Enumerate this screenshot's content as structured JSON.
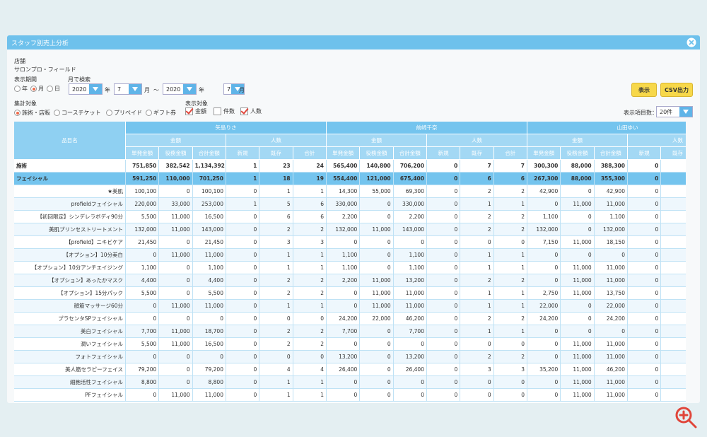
{
  "window": {
    "title": "スタッフ別売上分析"
  },
  "form": {
    "store_label": "店舗",
    "store_name": "サロンプロ・フィールド",
    "period_label": "表示期間",
    "period_options": [
      "年",
      "月",
      "日"
    ],
    "month_search_label": "月で検索",
    "from_year": "2020",
    "year_unit": "年",
    "from_month": "7",
    "month_unit": "月",
    "range_sep": "～",
    "to_year": "2020",
    "to_month": "7",
    "target_label": "集計対象",
    "target_options": [
      "施術・店販",
      "コースチケット",
      "プリペイド",
      "ギフト券"
    ],
    "display_label": "表示対象",
    "display_options": [
      "金額",
      "件数",
      "人数"
    ],
    "count_label": "表示項目数：",
    "count_value": "20件",
    "show_button": "表示",
    "csv_button": "CSV出力"
  },
  "table": {
    "header_item": "品目名",
    "staff": [
      "矢島りさ",
      "前崎千奈",
      "山田ゆい"
    ],
    "groups": [
      "金額",
      "人数"
    ],
    "columns": [
      "単発金額",
      "役務金額",
      "合計金額",
      "新規",
      "既存",
      "合計"
    ],
    "rows": [
      {
        "label": "施術",
        "values": [
          "751,850",
          "382,542",
          "1,134,392",
          "1",
          "23",
          "24",
          "565,400",
          "140,800",
          "706,200",
          "0",
          "7",
          "7",
          "300,300",
          "88,000",
          "388,300",
          "0"
        ]
      },
      {
        "label": "フェイシャル",
        "values": [
          "591,250",
          "110,000",
          "701,250",
          "1",
          "18",
          "19",
          "554,400",
          "121,000",
          "675,400",
          "0",
          "6",
          "6",
          "267,300",
          "88,000",
          "355,300",
          "0"
        ]
      },
      {
        "label": "★美肌",
        "values": [
          "100,100",
          "0",
          "100,100",
          "0",
          "1",
          "1",
          "14,300",
          "55,000",
          "69,300",
          "0",
          "2",
          "2",
          "42,900",
          "0",
          "42,900",
          "0"
        ]
      },
      {
        "label": "profieldフェイシャル",
        "values": [
          "220,000",
          "33,000",
          "253,000",
          "1",
          "5",
          "6",
          "330,000",
          "0",
          "330,000",
          "0",
          "1",
          "1",
          "0",
          "11,000",
          "11,000",
          "0"
        ]
      },
      {
        "label": "【初回限定】シンデレラボディ90分",
        "values": [
          "5,500",
          "11,000",
          "16,500",
          "0",
          "6",
          "6",
          "2,200",
          "0",
          "2,200",
          "0",
          "2",
          "2",
          "1,100",
          "0",
          "1,100",
          "0"
        ]
      },
      {
        "label": "美肌プリンセストリートメント",
        "values": [
          "132,000",
          "11,000",
          "143,000",
          "0",
          "2",
          "2",
          "132,000",
          "11,000",
          "143,000",
          "0",
          "2",
          "2",
          "132,000",
          "0",
          "132,000",
          "0"
        ]
      },
      {
        "label": "【profield】ニキビケア",
        "values": [
          "21,450",
          "0",
          "21,450",
          "0",
          "3",
          "3",
          "0",
          "0",
          "0",
          "0",
          "0",
          "0",
          "7,150",
          "11,000",
          "18,150",
          "0"
        ]
      },
      {
        "label": "【オプション】10分美白",
        "values": [
          "0",
          "11,000",
          "11,000",
          "0",
          "1",
          "1",
          "1,100",
          "0",
          "1,100",
          "0",
          "1",
          "1",
          "0",
          "0",
          "0",
          "0"
        ]
      },
      {
        "label": "【オプション】10分アンチエイジング",
        "values": [
          "1,100",
          "0",
          "1,100",
          "0",
          "1",
          "1",
          "1,100",
          "0",
          "1,100",
          "0",
          "1",
          "1",
          "0",
          "11,000",
          "11,000",
          "0"
        ]
      },
      {
        "label": "【オプション】あったかマスク",
        "values": [
          "4,400",
          "0",
          "4,400",
          "0",
          "2",
          "2",
          "2,200",
          "11,000",
          "13,200",
          "0",
          "2",
          "2",
          "0",
          "11,000",
          "11,000",
          "0"
        ]
      },
      {
        "label": "【オプション】15分パック",
        "values": [
          "5,500",
          "0",
          "5,500",
          "0",
          "2",
          "2",
          "0",
          "11,000",
          "11,000",
          "0",
          "1",
          "1",
          "2,750",
          "11,000",
          "13,750",
          "0"
        ]
      },
      {
        "label": "顔筋マッサージ60分",
        "values": [
          "0",
          "11,000",
          "11,000",
          "0",
          "1",
          "1",
          "0",
          "11,000",
          "11,000",
          "0",
          "1",
          "1",
          "22,000",
          "0",
          "22,000",
          "0"
        ]
      },
      {
        "label": "プラセンタSPフェイシャル",
        "values": [
          "0",
          "0",
          "0",
          "0",
          "0",
          "0",
          "24,200",
          "22,000",
          "46,200",
          "0",
          "2",
          "2",
          "24,200",
          "0",
          "24,200",
          "0"
        ]
      },
      {
        "label": "美白フェイシャル",
        "values": [
          "7,700",
          "11,000",
          "18,700",
          "0",
          "2",
          "2",
          "7,700",
          "0",
          "7,700",
          "0",
          "1",
          "1",
          "0",
          "0",
          "0",
          "0"
        ]
      },
      {
        "label": "潤いフェイシャル",
        "values": [
          "5,500",
          "11,000",
          "16,500",
          "0",
          "2",
          "2",
          "0",
          "0",
          "0",
          "0",
          "0",
          "0",
          "0",
          "11,000",
          "11,000",
          "0"
        ]
      },
      {
        "label": "フォトフェイシャル",
        "values": [
          "0",
          "0",
          "0",
          "0",
          "0",
          "0",
          "13,200",
          "0",
          "13,200",
          "0",
          "2",
          "2",
          "0",
          "11,000",
          "11,000",
          "0"
        ]
      },
      {
        "label": "美人筋セラピーフェイス",
        "values": [
          "79,200",
          "0",
          "79,200",
          "0",
          "4",
          "4",
          "26,400",
          "0",
          "26,400",
          "0",
          "3",
          "3",
          "35,200",
          "11,000",
          "46,200",
          "0"
        ]
      },
      {
        "label": "細胞活性フェイシャル",
        "values": [
          "8,800",
          "0",
          "8,800",
          "0",
          "1",
          "1",
          "0",
          "0",
          "0",
          "0",
          "0",
          "0",
          "0",
          "11,000",
          "11,000",
          "0"
        ]
      },
      {
        "label": "PFフェイシャル",
        "values": [
          "0",
          "11,000",
          "11,000",
          "0",
          "1",
          "1",
          "0",
          "0",
          "0",
          "0",
          "0",
          "0",
          "0",
          "11,000",
          "11,000",
          "0"
        ]
      }
    ]
  }
}
